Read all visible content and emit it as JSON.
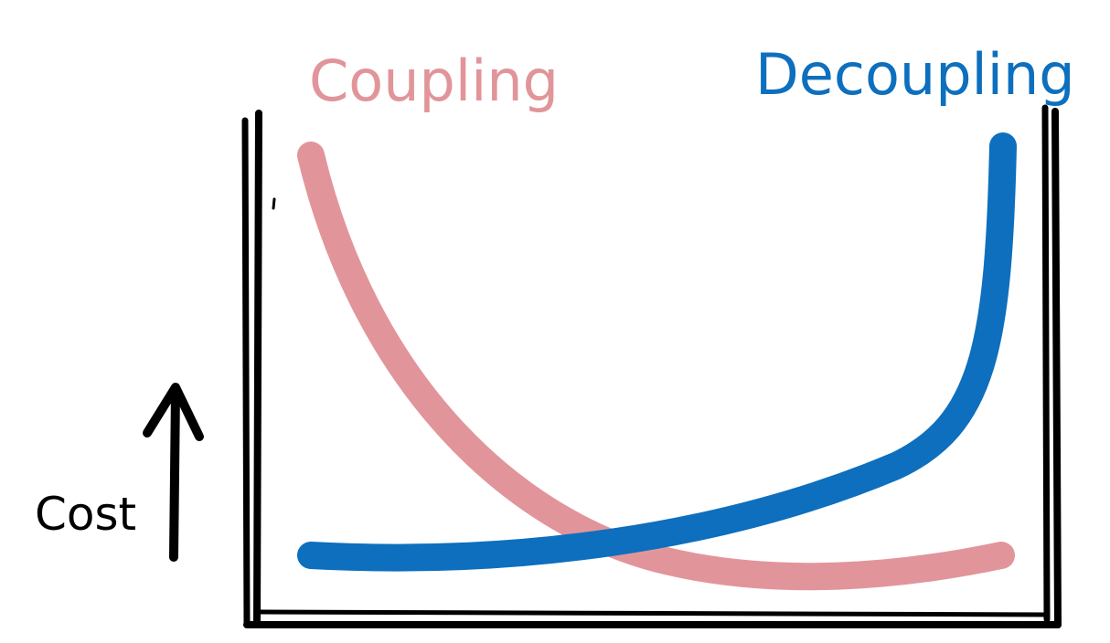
{
  "labels": {
    "coupling": "Coupling",
    "decoupling": "Decoupling",
    "cost": "Cost"
  },
  "colors": {
    "coupling": "#e1959a",
    "decoupling": "#0d6fbd",
    "ink": "#000000"
  },
  "icons": {
    "cost_arrow": "arrow-up-icon"
  }
}
